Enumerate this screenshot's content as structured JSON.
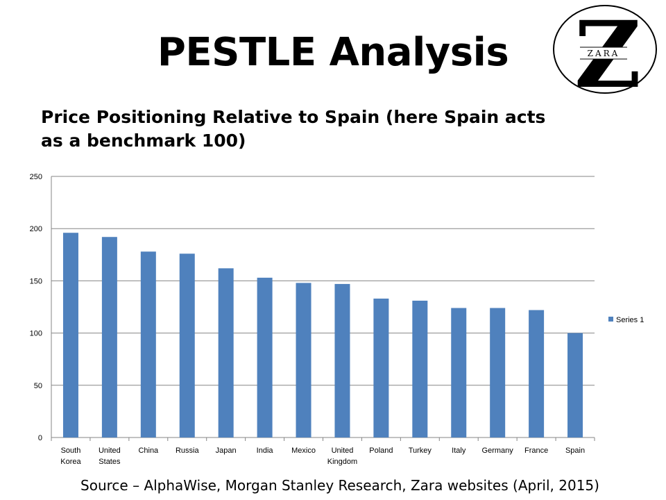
{
  "slide": {
    "title": "PESTLE Analysis",
    "subtitle": "Price Positioning Relative to Spain (here Spain acts as a benchmark 100)",
    "source": "Source – AlphaWise, Morgan Stanley Research, Zara websites (April, 2015)"
  },
  "logo": {
    "letter": "Z",
    "brand": "ZARA"
  },
  "chart_data": {
    "type": "bar",
    "categories": [
      "South Korea",
      "United States",
      "China",
      "Russia",
      "Japan",
      "India",
      "Mexico",
      "United Kingdom",
      "Poland",
      "Turkey",
      "Italy",
      "Germany",
      "France",
      "Spain"
    ],
    "category_lines": [
      [
        "South",
        "Korea"
      ],
      [
        "United",
        "States"
      ],
      [
        "China"
      ],
      [
        "Russia"
      ],
      [
        "Japan"
      ],
      [
        "India"
      ],
      [
        "Mexico"
      ],
      [
        "United",
        "Kingdom"
      ],
      [
        "Poland"
      ],
      [
        "Turkey"
      ],
      [
        "Italy"
      ],
      [
        "Germany"
      ],
      [
        "France"
      ],
      [
        "Spain"
      ]
    ],
    "series": [
      {
        "name": "Series 1",
        "values": [
          196,
          192,
          178,
          176,
          162,
          153,
          148,
          147,
          133,
          131,
          124,
          124,
          122,
          100
        ]
      }
    ],
    "ylim": [
      0,
      250
    ],
    "yticks": [
      0,
      50,
      100,
      150,
      200,
      250
    ],
    "grid": true,
    "legend": "right",
    "colors": {
      "bar": "#4F81BD",
      "grid": "#868686",
      "axis": "#868686"
    },
    "xlabel": "",
    "ylabel": ""
  }
}
